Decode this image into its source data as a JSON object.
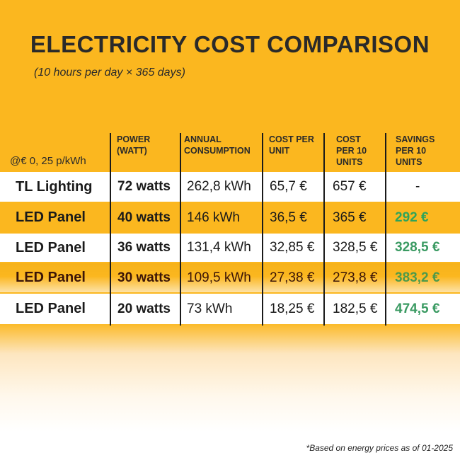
{
  "title": "ELECTRICITY COST COMPARISON",
  "subtitle": "(10 hours per day × 365 days)",
  "table": {
    "rate_label": "@€ 0, 25 p/kWh",
    "headers": [
      "POWER (WATT)",
      "ANNUAL CONSUMPTION",
      "COST PER UNIT",
      "COST PER 10 UNITS",
      "SAVINGS PER 10 UNITS"
    ],
    "rows": [
      {
        "name": "TL Lighting",
        "power": "72 watts",
        "consumption": "262,8 kWh",
        "cost_unit": "65,7 €",
        "cost_10": "657 €",
        "savings": "-"
      },
      {
        "name": "LED Panel",
        "power": "40 watts",
        "consumption": "146 kWh",
        "cost_unit": "36,5 €",
        "cost_10": "365 €",
        "savings": "292 €"
      },
      {
        "name": "LED Panel",
        "power": "36 watts",
        "consumption": "131,4 kWh",
        "cost_unit": "32,85 €",
        "cost_10": "328,5 €",
        "savings": "328,5 €"
      },
      {
        "name": "LED Panel",
        "power": "30 watts",
        "consumption": "109,5 kWh",
        "cost_unit": "27,38 €",
        "cost_10": "273,8 €",
        "savings": "383,2 €"
      },
      {
        "name": "LED Panel",
        "power": "20 watts",
        "consumption": "73 kWh",
        "cost_unit": "18,25 €",
        "cost_10": "182,5 €",
        "savings": "474,5 €"
      }
    ]
  },
  "footnote": "*Based on energy prices as of 01-2025",
  "colors": {
    "background": "#fbb71f",
    "savings": "#2fa45a",
    "text": "#1a1a1a"
  }
}
